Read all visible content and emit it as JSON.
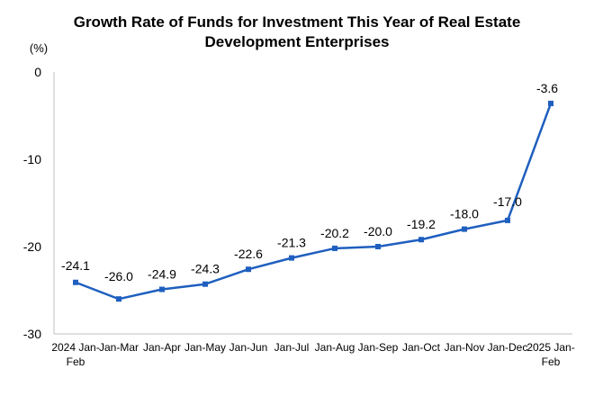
{
  "title_line1": "Growth Rate of Funds for Investment This Year of Real Estate",
  "title_line2": "Development Enterprises",
  "chart_data": {
    "type": "line",
    "title": "Growth Rate of Funds for Investment This Year of Real Estate Development Enterprises",
    "ylabel": "(%)",
    "xlabel": "",
    "ylim": [
      -30,
      0
    ],
    "yticks": [
      0,
      -10,
      -20,
      -30
    ],
    "grid": false,
    "categories": [
      [
        "2024 Jan-",
        "Feb"
      ],
      [
        "Jan-Mar"
      ],
      [
        "Jan-Apr"
      ],
      [
        "Jan-May"
      ],
      [
        "Jan-Jun"
      ],
      [
        "Jan-Jul"
      ],
      [
        "Jan-Aug"
      ],
      [
        "Jan-Sep"
      ],
      [
        "Jan-Oct"
      ],
      [
        "Jan-Nov"
      ],
      [
        "Jan-Dec"
      ],
      [
        "2025 Jan-",
        "Feb"
      ]
    ],
    "series": [
      {
        "values": [
          -24.1,
          -26.0,
          -24.9,
          -24.3,
          -22.6,
          -21.3,
          -20.2,
          -20.0,
          -19.2,
          -18.0,
          -17.0,
          -3.6
        ],
        "labels": [
          "-24.1",
          "-26.0",
          "-24.9",
          "-24.3",
          "-22.6",
          "-21.3",
          "-20.2",
          "-20.0",
          "-19.2",
          "-18.0",
          "-17.0",
          "-3.6"
        ],
        "color": "#1f5fbf"
      }
    ]
  }
}
